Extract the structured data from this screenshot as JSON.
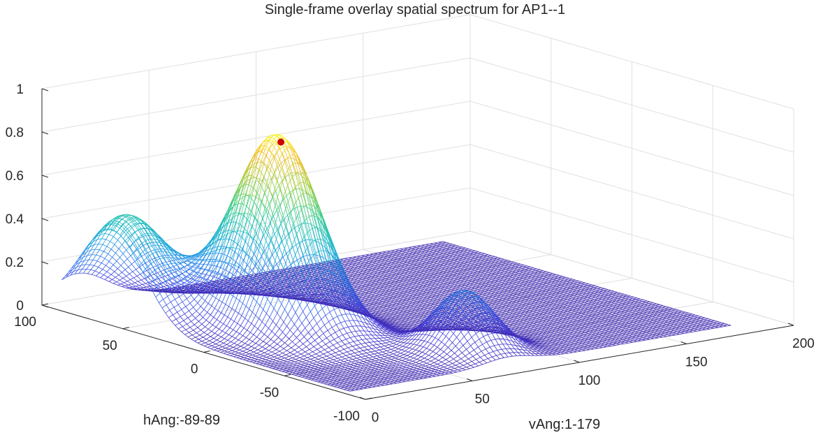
{
  "chart_data": {
    "type": "surface",
    "title": "Single-frame overlay spatial spectrum for AP1--1",
    "xlabel": "vAng:1-179",
    "ylabel": "hAng:-89-89",
    "zlabel": "",
    "xlim": [
      0,
      200
    ],
    "ylim": [
      -100,
      100
    ],
    "zlim": [
      0,
      1
    ],
    "xticks": [
      "0",
      "50",
      "100",
      "150",
      "200"
    ],
    "yticks": [
      "-100",
      "-50",
      "0",
      "50",
      "100"
    ],
    "zticks": [
      "0",
      "0.2",
      "0.4",
      "0.6",
      "0.8",
      "1"
    ],
    "x_range": [
      1,
      179
    ],
    "y_range": [
      -89,
      89
    ],
    "grid": true,
    "colormap": "parula",
    "peak": {
      "x": 42,
      "y": 10,
      "z": 0.9,
      "color": "#cc0000"
    },
    "surface_lobes": [
      {
        "x": 42,
        "y": 10,
        "z": 0.9,
        "sx": 13,
        "sy": 22
      },
      {
        "x": 8,
        "y": 58,
        "z": 0.48,
        "sx": 14,
        "sy": 20
      },
      {
        "x": 75,
        "y": -62,
        "z": 0.28,
        "sx": 11,
        "sy": 13
      }
    ]
  }
}
